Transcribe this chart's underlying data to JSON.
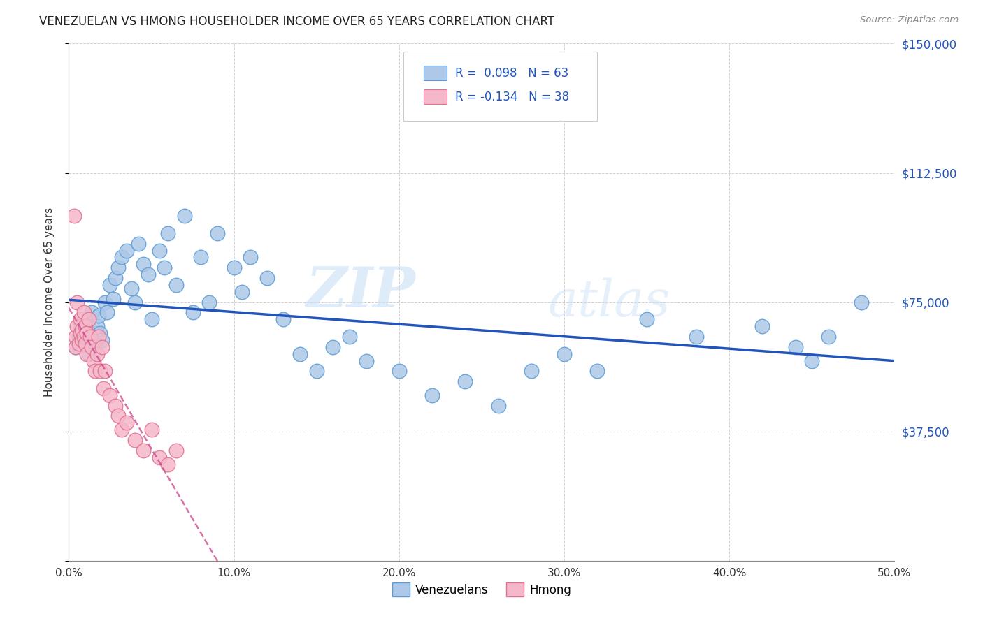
{
  "title": "VENEZUELAN VS HMONG HOUSEHOLDER INCOME OVER 65 YEARS CORRELATION CHART",
  "source": "Source: ZipAtlas.com",
  "ylabel": "Householder Income Over 65 years",
  "xlim": [
    0.0,
    0.5
  ],
  "ylim": [
    0,
    150000
  ],
  "yticks": [
    0,
    37500,
    75000,
    112500,
    150000
  ],
  "ytick_labels": [
    "",
    "$37,500",
    "$75,000",
    "$112,500",
    "$150,000"
  ],
  "xticks": [
    0.0,
    0.1,
    0.2,
    0.3,
    0.4,
    0.5
  ],
  "xtick_labels": [
    "0.0%",
    "10.0%",
    "20.0%",
    "30.0%",
    "40.0%",
    "50.0%"
  ],
  "venezuelan_color": "#adc8e8",
  "hmong_color": "#f5b8cb",
  "venezuelan_edge": "#5b9bd5",
  "hmong_edge": "#e07090",
  "trend_venezuelan_color": "#2255bb",
  "trend_hmong_color": "#cc4488",
  "watermark_zip": "ZIP",
  "watermark_atlas": "atlas",
  "legend_r_venezuelan": "R =  0.098",
  "legend_n_venezuelan": "N = 63",
  "legend_r_hmong": "R = -0.134",
  "legend_n_hmong": "N = 38",
  "venezuelan_x": [
    0.004,
    0.006,
    0.007,
    0.008,
    0.009,
    0.01,
    0.011,
    0.012,
    0.013,
    0.014,
    0.015,
    0.016,
    0.017,
    0.018,
    0.019,
    0.02,
    0.022,
    0.023,
    0.025,
    0.027,
    0.028,
    0.03,
    0.032,
    0.035,
    0.038,
    0.04,
    0.042,
    0.045,
    0.048,
    0.05,
    0.055,
    0.058,
    0.06,
    0.065,
    0.07,
    0.075,
    0.08,
    0.085,
    0.09,
    0.1,
    0.105,
    0.11,
    0.12,
    0.13,
    0.14,
    0.15,
    0.16,
    0.17,
    0.18,
    0.2,
    0.22,
    0.24,
    0.26,
    0.28,
    0.3,
    0.32,
    0.35,
    0.38,
    0.42,
    0.44,
    0.45,
    0.46,
    0.48
  ],
  "venezuelan_y": [
    62000,
    65000,
    68000,
    63000,
    66000,
    64000,
    70000,
    60000,
    67000,
    72000,
    65000,
    63000,
    68000,
    71000,
    66000,
    64000,
    75000,
    72000,
    80000,
    76000,
    82000,
    85000,
    88000,
    90000,
    79000,
    75000,
    92000,
    86000,
    83000,
    70000,
    90000,
    85000,
    95000,
    80000,
    100000,
    72000,
    88000,
    75000,
    95000,
    85000,
    78000,
    88000,
    82000,
    70000,
    60000,
    55000,
    62000,
    65000,
    58000,
    55000,
    48000,
    52000,
    45000,
    55000,
    60000,
    55000,
    70000,
    65000,
    68000,
    62000,
    58000,
    65000,
    75000
  ],
  "hmong_x": [
    0.003,
    0.004,
    0.004,
    0.005,
    0.005,
    0.006,
    0.007,
    0.007,
    0.008,
    0.008,
    0.009,
    0.009,
    0.01,
    0.01,
    0.011,
    0.011,
    0.012,
    0.013,
    0.014,
    0.015,
    0.016,
    0.017,
    0.018,
    0.019,
    0.02,
    0.021,
    0.022,
    0.025,
    0.028,
    0.03,
    0.032,
    0.035,
    0.04,
    0.045,
    0.05,
    0.055,
    0.06,
    0.065
  ],
  "hmong_y": [
    100000,
    65000,
    62000,
    75000,
    68000,
    63000,
    66000,
    70000,
    64000,
    67000,
    72000,
    65000,
    68000,
    63000,
    66000,
    60000,
    70000,
    65000,
    62000,
    58000,
    55000,
    60000,
    65000,
    55000,
    62000,
    50000,
    55000,
    48000,
    45000,
    42000,
    38000,
    40000,
    35000,
    32000,
    38000,
    30000,
    28000,
    32000
  ]
}
